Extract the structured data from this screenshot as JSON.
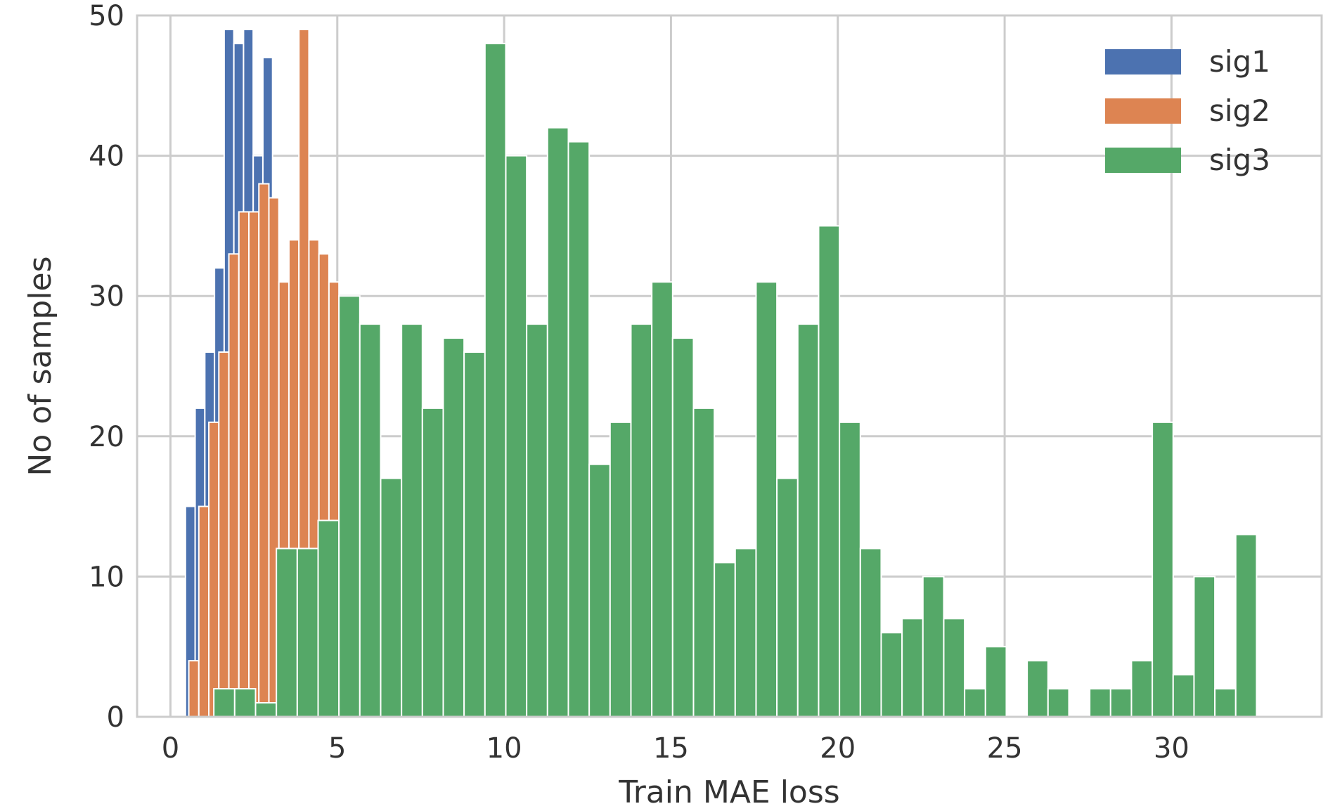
{
  "chart_data": {
    "type": "bar",
    "title": "",
    "xlabel": "Train MAE loss",
    "ylabel": "No of samples",
    "xlim": [
      -1.0,
      34.5
    ],
    "ylim": [
      0,
      50
    ],
    "x_ticks": [
      0,
      5,
      10,
      15,
      20,
      25,
      30
    ],
    "x_tick_labels": [
      "0",
      "5",
      "10",
      "15",
      "20",
      "25",
      "30"
    ],
    "y_ticks": [
      0,
      10,
      20,
      30,
      40,
      50
    ],
    "y_tick_labels": [
      "0",
      "10",
      "20",
      "30",
      "40",
      "50"
    ],
    "grid": true,
    "legend_position": "top-right",
    "bin_width_units": "MAE loss",
    "series": [
      {
        "name": "sig1",
        "color": "#4c72b0",
        "bin_start": 0.45,
        "bin_width": 0.29,
        "values": [
          15,
          22,
          26,
          32,
          49,
          48,
          49,
          40,
          47,
          12,
          12,
          12,
          12
        ]
      },
      {
        "name": "sig2",
        "color": "#dd8452",
        "bin_start": 0.55,
        "bin_width": 0.3,
        "values": [
          4,
          15,
          21,
          26,
          33,
          36,
          36,
          38,
          37,
          31,
          34,
          49,
          34,
          33,
          31,
          28,
          22,
          15
        ]
      },
      {
        "name": "sig3",
        "color": "#55a868",
        "bin_start": 1.3,
        "bin_width": 0.625,
        "values": [
          2,
          2,
          1,
          12,
          12,
          14,
          30,
          28,
          17,
          28,
          22,
          27,
          26,
          48,
          40,
          28,
          42,
          41,
          18,
          21,
          28,
          31,
          27,
          22,
          11,
          12,
          31,
          17,
          28,
          35,
          21,
          12,
          6,
          7,
          10,
          7,
          2,
          5,
          0,
          4,
          2,
          0,
          2,
          2,
          4,
          21,
          3,
          10,
          2,
          13
        ]
      }
    ]
  }
}
